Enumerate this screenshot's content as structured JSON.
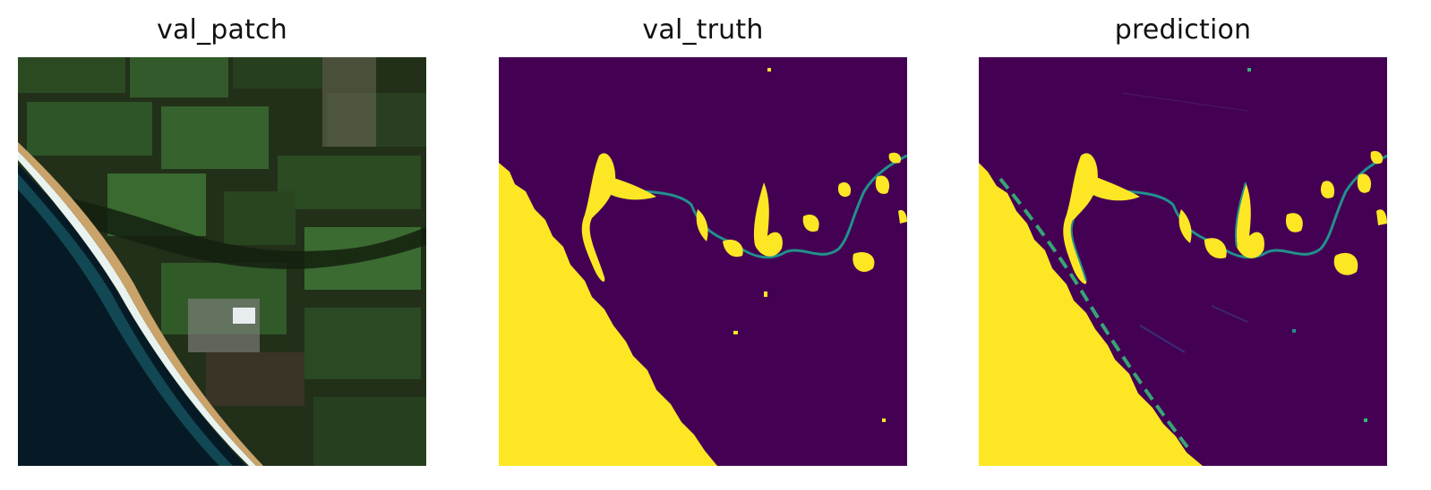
{
  "panels": [
    {
      "title": "val_patch"
    },
    {
      "title": "val_truth"
    },
    {
      "title": "prediction"
    }
  ],
  "colors": {
    "background_class": "#440154",
    "water_class": "#fde725",
    "river_class": "#21918c",
    "land_dark": "#1f2c17",
    "field_green": "#2f5a28",
    "ocean": "#061a26",
    "surf": "#e8f3f0",
    "sand": "#c9a36a"
  }
}
